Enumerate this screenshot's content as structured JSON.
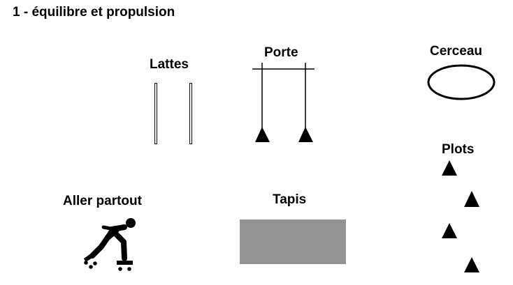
{
  "title": "1 -  équilibre et propulsion",
  "stations": {
    "lattes": "Lattes",
    "porte": "Porte",
    "cerceau": "Cerceau",
    "plots": "Plots",
    "aller_partout": "Aller partout",
    "tapis": "Tapis"
  },
  "icons": {
    "skater": "rollerblader-icon"
  },
  "colors": {
    "ink": "#000000",
    "mat": "#939393",
    "background": "#ffffff"
  }
}
